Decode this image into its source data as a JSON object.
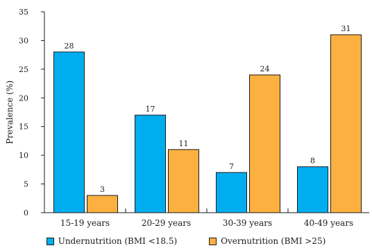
{
  "chart_data": {
    "type": "bar",
    "categories": [
      "15-19 years",
      "20-29 years",
      "30-39 years",
      "40-49 years"
    ],
    "series": [
      {
        "name": "Undernutrition (BMI <18.5)",
        "values": [
          28,
          17,
          7,
          8
        ],
        "color": "#00AEEF"
      },
      {
        "name": "Overnutrition (BMI >25)",
        "values": [
          3,
          11,
          24,
          31
        ],
        "color": "#FBB040"
      }
    ],
    "ylabel": "Prevalence (%)",
    "xlabel": "",
    "ylim": [
      0,
      35
    ],
    "yticks": [
      "0",
      "5",
      "10",
      "15",
      "20",
      "25",
      "30",
      "35"
    ],
    "grid": false,
    "legend_position": "bottom"
  }
}
